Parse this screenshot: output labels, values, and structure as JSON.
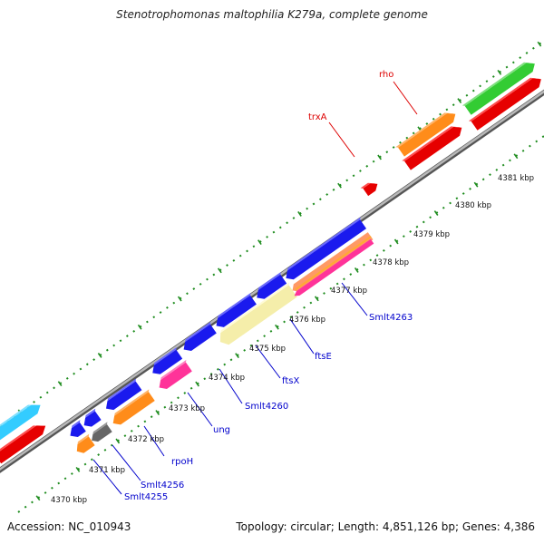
{
  "title": "Stenotrophomonas maltophilia K279a, complete genome",
  "footer": {
    "accession": "Accession: NC_010943",
    "summary": "Topology: circular; Length: 4,851,126 bp; Genes: 4,386"
  },
  "colors": {
    "backbone": "#8c8c8c",
    "tick": "#1e8c1e",
    "label_blue": "#0000cc",
    "label_red": "#dd0000"
  },
  "scale": {
    "kbp_labels": [
      "4370 kbp",
      "4371 kbp",
      "4372 kbp",
      "4373 kbp",
      "4374 kbp",
      "4375 kbp",
      "4376 kbp",
      "4377 kbp",
      "4378 kbp",
      "4379 kbp",
      "4380 kbp",
      "4381 kbp"
    ]
  },
  "gene_labels": [
    {
      "name": "rpoH",
      "color": "blue"
    },
    {
      "name": "Smlt4256",
      "color": "blue"
    },
    {
      "name": "Smlt4255",
      "color": "blue"
    },
    {
      "name": "ung",
      "color": "blue"
    },
    {
      "name": "Smlt4260",
      "color": "blue"
    },
    {
      "name": "ftsX",
      "color": "blue"
    },
    {
      "name": "ftsE",
      "color": "blue"
    },
    {
      "name": "Smlt4263",
      "color": "blue"
    },
    {
      "name": "trxA",
      "color": "red"
    },
    {
      "name": "rho",
      "color": "red"
    }
  ],
  "features": [
    {
      "strand": "reverse",
      "color": "#1a1aee",
      "name": "feat-blue-1"
    },
    {
      "strand": "reverse",
      "color": "#1a1aee",
      "name": "feat-blue-2"
    },
    {
      "strand": "reverse",
      "color": "#1a1aee",
      "name": "feat-blue-3"
    },
    {
      "strand": "reverse",
      "color": "#1a1aee",
      "name": "feat-blue-4"
    },
    {
      "strand": "reverse",
      "color": "#1a1aee",
      "name": "feat-blue-5"
    },
    {
      "strand": "reverse",
      "color": "#1a1aee",
      "name": "feat-blue-6"
    },
    {
      "strand": "reverse",
      "color": "#1a1aee",
      "name": "feat-blue-7"
    },
    {
      "strand": "reverse",
      "color": "#1a1aee",
      "name": "feat-blue-8"
    },
    {
      "strand": "reverse",
      "color": "#1a1aee",
      "name": "feat-blue-9"
    },
    {
      "strand": "reverse",
      "color": "#ff8c1a",
      "name": "feat-orange-rpoH"
    },
    {
      "strand": "reverse",
      "color": "#ff8c1a",
      "name": "feat-orange-4255"
    },
    {
      "strand": "reverse",
      "color": "#666666",
      "name": "feat-gray-4256"
    },
    {
      "strand": "reverse",
      "color": "#ff3399",
      "name": "feat-pink-ung"
    },
    {
      "strand": "reverse",
      "color": "#f5eeaa",
      "name": "feat-yellow-ftsE"
    },
    {
      "strand": "reverse",
      "color": "#ff9966",
      "name": "feat-salmon-4263"
    },
    {
      "strand": "reverse",
      "color": "#ff3399",
      "name": "feat-pink-4263"
    },
    {
      "strand": "forward",
      "color": "#e60000",
      "name": "feat-red-trxA"
    },
    {
      "strand": "forward",
      "color": "#ff8c1a",
      "name": "feat-orange-rho"
    },
    {
      "strand": "forward",
      "color": "#e60000",
      "name": "feat-red-rho"
    },
    {
      "strand": "forward",
      "color": "#33cc33",
      "name": "feat-green-1"
    },
    {
      "strand": "forward",
      "color": "#e60000",
      "name": "feat-red-2"
    },
    {
      "strand": "forward",
      "color": "#33ccff",
      "name": "feat-cyan-left"
    },
    {
      "strand": "forward",
      "color": "#e60000",
      "name": "feat-red-left"
    }
  ]
}
